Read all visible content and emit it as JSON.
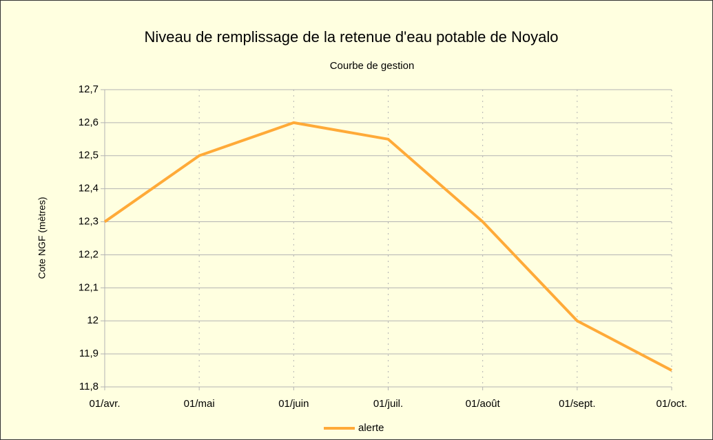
{
  "chart_data": {
    "type": "line",
    "title": "Niveau de remplissage de la retenue d'eau potable de Noyalo",
    "subtitle": "Courbe de gestion",
    "y_label": "Cote NGF (mètres)",
    "categories": [
      "01/avr.",
      "01/mai",
      "01/juin",
      "01/juil.",
      "01/août",
      "01/sept.",
      "01/oct."
    ],
    "series": [
      {
        "name": "alerte",
        "color": "#ffaa38",
        "values": [
          12.3,
          12.5,
          12.6,
          12.55,
          12.3,
          12.0,
          11.85
        ]
      }
    ],
    "ylim": [
      11.8,
      12.7
    ],
    "yticks": [
      {
        "value": 11.8,
        "label": "11,8"
      },
      {
        "value": 11.9,
        "label": "11,9"
      },
      12,
      {
        "value": 12.1,
        "label": "12,1"
      },
      {
        "value": 12.2,
        "label": "12,2"
      },
      {
        "value": 12.3,
        "label": "12,3"
      },
      {
        "value": 12.4,
        "label": "12,4"
      },
      {
        "value": 12.5,
        "label": "12,5"
      },
      {
        "value": 12.6,
        "label": "12,6"
      },
      {
        "value": 12.7,
        "label": "12,7"
      }
    ],
    "grid": true,
    "legend": "bottom"
  }
}
